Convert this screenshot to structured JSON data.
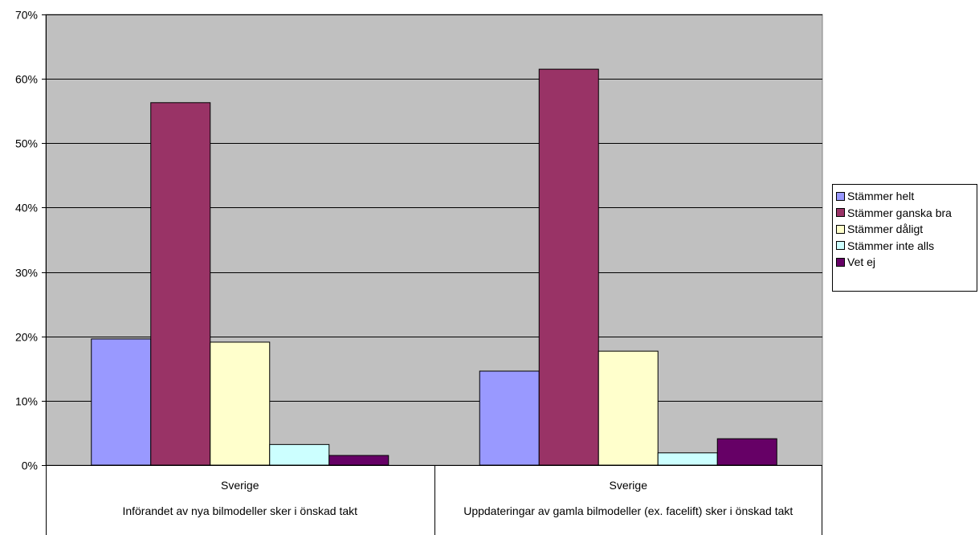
{
  "chart_data": {
    "type": "bar",
    "categories": [
      [
        "Sverige",
        "Införandet av nya bilmodeller sker i önskad takt"
      ],
      [
        "Sverige",
        "Uppdateringar av gamla bilmodeller (ex. facelift) sker i önskad takt"
      ]
    ],
    "series": [
      {
        "name": "Stämmer helt",
        "color": "#9999ff",
        "values": [
          19.6,
          14.6
        ]
      },
      {
        "name": "Stämmer ganska bra",
        "color": "#993366",
        "values": [
          56.3,
          61.5
        ]
      },
      {
        "name": "Stämmer dåligt",
        "color": "#ffffcc",
        "values": [
          19.1,
          17.7
        ]
      },
      {
        "name": "Stämmer inte alls",
        "color": "#ccffff",
        "values": [
          3.2,
          1.9
        ]
      },
      {
        "name": "Vet ej",
        "color": "#660066",
        "values": [
          1.5,
          4.1
        ]
      }
    ],
    "ylim": [
      0,
      70
    ],
    "yticks": [
      "0%",
      "10%",
      "20%",
      "30%",
      "40%",
      "50%",
      "60%",
      "70%"
    ],
    "title": "",
    "xlabel": "",
    "ylabel": "",
    "grid": true,
    "legend": "right",
    "plot_background": "#c0c0c0"
  }
}
